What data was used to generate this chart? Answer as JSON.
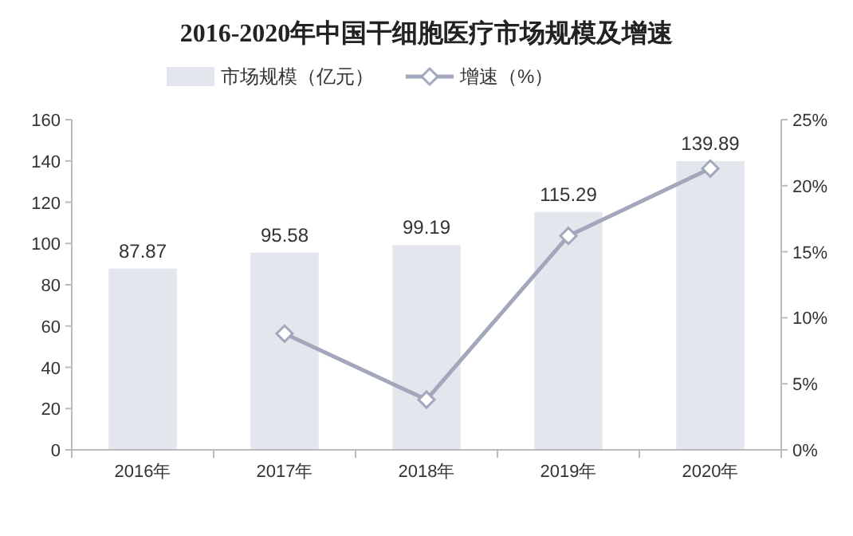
{
  "chart_data": {
    "type": "bar",
    "title": "2016-2020年中国干细胞医疗市场规模及增速",
    "categories": [
      "2016年",
      "2017年",
      "2018年",
      "2019年",
      "2020年"
    ],
    "series": [
      {
        "name": "市场规模（亿元）",
        "color": "#e4e6ee",
        "values": [
          87.87,
          95.58,
          99.19,
          115.29,
          139.89
        ],
        "value_labels": [
          "87.87",
          "95.58",
          "99.19",
          "115.29",
          "139.89"
        ]
      },
      {
        "name": "增速（%）",
        "type": "line",
        "axis": "y2",
        "color": "#a3a7bb",
        "marker": "diamond",
        "values": [
          null,
          8.8,
          3.8,
          16.2,
          21.3
        ]
      }
    ],
    "ylim": [
      0,
      160
    ],
    "yticks": [
      0,
      20,
      40,
      60,
      80,
      100,
      120,
      140,
      160
    ],
    "y2lim": [
      0,
      25
    ],
    "y2ticks": [
      {
        "value": 0,
        "label": "0%"
      },
      {
        "value": 5,
        "label": "5%"
      },
      {
        "value": 10,
        "label": "10%"
      },
      {
        "value": 15,
        "label": "15%"
      },
      {
        "value": 20,
        "label": "20%"
      },
      {
        "value": 25,
        "label": "25%"
      }
    ],
    "legend": "top",
    "grid": false
  }
}
